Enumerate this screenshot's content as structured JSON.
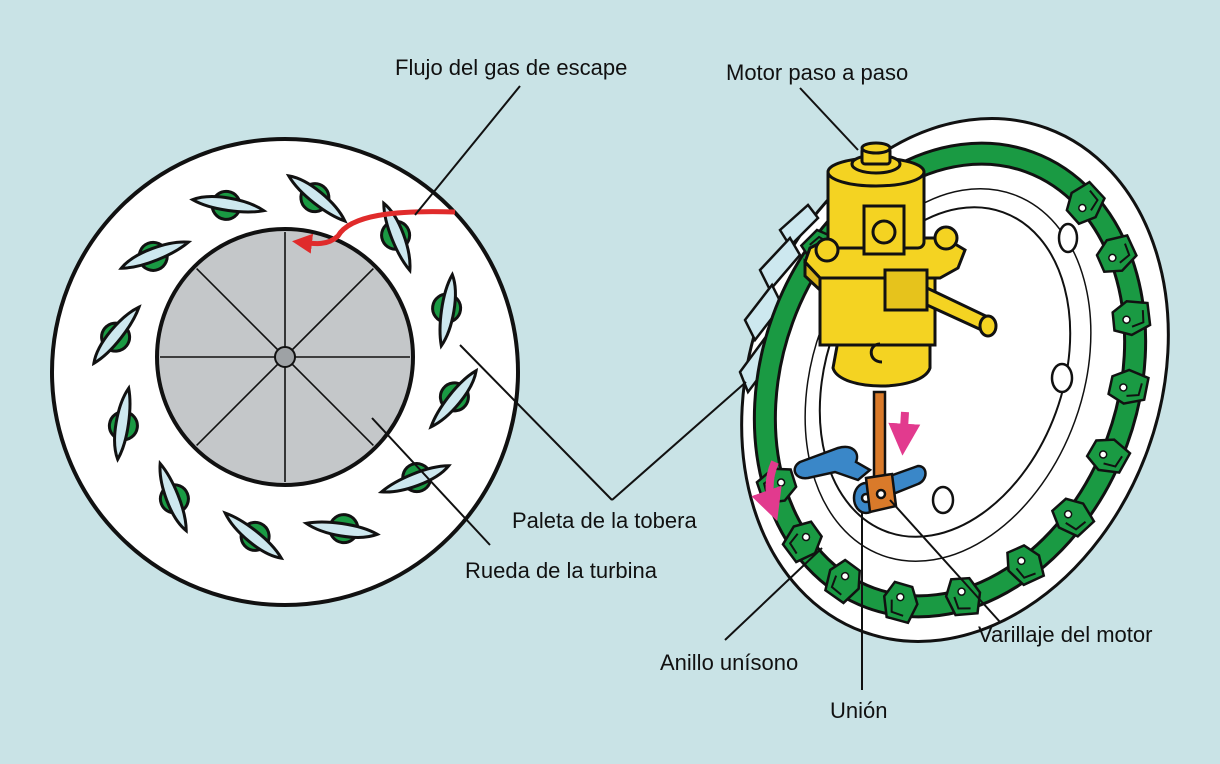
{
  "labels": {
    "exhaust_flow": "Flujo del gas de escape",
    "stepper_motor": "Motor paso a paso",
    "nozzle_vane": "Paleta de la tobera",
    "turbine_wheel": "Rueda de la turbina",
    "motor_linkage": "Varillaje del motor",
    "unison_ring": "Anillo unísono",
    "union": "Unión"
  },
  "colors": {
    "background": "#c9e3e6",
    "vane_fill": "#cde8ef",
    "pivot_green": "#1a9a43",
    "turbine_gray": "#c4c7c9",
    "motor_yellow": "#f4d322",
    "flow_arrow_red": "#e02b2b",
    "rotation_arrow_pink": "#e23a8e",
    "link_blue": "#3a87c8",
    "rod_orange": "#d97a2a"
  },
  "vane_count": 12
}
